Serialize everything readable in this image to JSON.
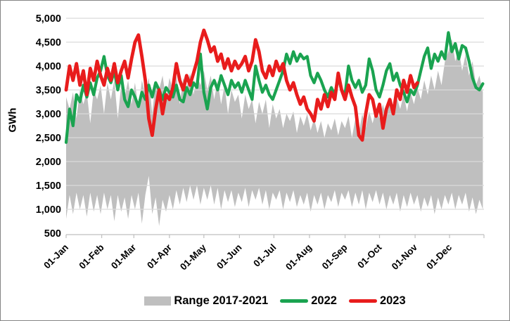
{
  "chart_data": {
    "type": "line",
    "title": "",
    "ylabel": "GWh",
    "ylim": [
      500,
      5000
    ],
    "grid": true,
    "legend_position": "bottom",
    "y_ticks": [
      500,
      1000,
      1500,
      2000,
      2500,
      3000,
      3500,
      4000,
      4500,
      5000
    ],
    "y_tick_labels": [
      "500",
      "1,000",
      "1,500",
      "2,000",
      "2,500",
      "3,000",
      "3,500",
      "4,000",
      "4,500",
      "5,000"
    ],
    "x_tick_labels": [
      "01-Jan",
      "01-Feb",
      "01-Mar",
      "01-Apr",
      "01-May",
      "01-Jun",
      "01-Jul",
      "01-Aug",
      "01-Sep",
      "01-Oct",
      "01-Nov",
      "01-Dec"
    ],
    "x_tick_days": [
      1,
      32,
      60,
      91,
      121,
      152,
      182,
      213,
      244,
      274,
      305,
      335
    ],
    "x_axis_span_days": 365,
    "colors": {
      "range": "#BFBFBF",
      "s2022": "#1AA350",
      "s2023": "#E81C1C",
      "gridline": "#D9D9D9",
      "axis": "#BFBFBF",
      "text": "#000000"
    },
    "range_2017_2021": {
      "name": "Range 2017-2021",
      "color": "#BFBFBF",
      "days": [
        1,
        4,
        7,
        10,
        13,
        16,
        19,
        22,
        25,
        28,
        31,
        34,
        37,
        40,
        43,
        46,
        49,
        52,
        55,
        58,
        61,
        64,
        67,
        70,
        73,
        76,
        79,
        82,
        85,
        88,
        91,
        94,
        97,
        100,
        103,
        106,
        109,
        112,
        115,
        118,
        121,
        124,
        127,
        130,
        133,
        136,
        139,
        142,
        145,
        148,
        151,
        154,
        157,
        160,
        163,
        166,
        169,
        172,
        175,
        178,
        181,
        184,
        187,
        190,
        193,
        196,
        199,
        202,
        205,
        208,
        211,
        214,
        217,
        220,
        223,
        226,
        229,
        232,
        235,
        238,
        241,
        244,
        247,
        250,
        253,
        256,
        259,
        262,
        265,
        268,
        271,
        274,
        277,
        280,
        283,
        286,
        289,
        292,
        295,
        298,
        301,
        304,
        307,
        310,
        313,
        316,
        319,
        322,
        325,
        328,
        331,
        334,
        337,
        340,
        343,
        346,
        349,
        352,
        355,
        358,
        361,
        364
      ],
      "max": [
        3350,
        3100,
        3450,
        2900,
        3500,
        3200,
        3450,
        2800,
        3500,
        3300,
        3600,
        3000,
        3650,
        3300,
        3700,
        2900,
        3600,
        3350,
        3700,
        3200,
        3650,
        3100,
        3700,
        3400,
        3750,
        3000,
        3700,
        3500,
        3800,
        3300,
        3750,
        3500,
        3800,
        3200,
        3750,
        3550,
        3850,
        3400,
        3800,
        3600,
        3900,
        3500,
        3800,
        3300,
        3700,
        3200,
        3600,
        3000,
        3500,
        3250,
        3400,
        2900,
        3400,
        3100,
        3300,
        2800,
        3250,
        3000,
        3300,
        2700,
        3200,
        2900,
        3100,
        2700,
        3000,
        2850,
        3050,
        2600,
        2950,
        2750,
        3000,
        2650,
        2900,
        2600,
        2850,
        2500,
        2800,
        2650,
        2900,
        2550,
        2850,
        2700,
        2950,
        2500,
        2900,
        2600,
        3000,
        2700,
        3050,
        2800,
        3100,
        2900,
        3200,
        2900,
        3300,
        3000,
        3350,
        3100,
        3400,
        3050,
        3450,
        3200,
        3550,
        3300,
        3700,
        3400,
        3800,
        3500,
        3900,
        3600,
        4100,
        4300,
        4560,
        4100,
        4350,
        3900,
        4250,
        3800,
        4100,
        3600,
        3800,
        3450
      ],
      "min": [
        800,
        1300,
        900,
        1350,
        1000,
        1300,
        850,
        1350,
        950,
        1300,
        900,
        1350,
        1000,
        1300,
        750,
        1300,
        950,
        1250,
        800,
        1300,
        1000,
        1350,
        700,
        1300,
        1700,
        900,
        1250,
        650,
        1200,
        950,
        1300,
        1000,
        1400,
        1100,
        1450,
        1150,
        1500,
        1200,
        1500,
        1100,
        1450,
        1200,
        1500,
        1100,
        1450,
        1000,
        1400,
        1150,
        1400,
        1050,
        1350,
        1150,
        1450,
        1050,
        1400,
        1200,
        1450,
        1100,
        1400,
        1000,
        1350,
        1200,
        1400,
        1000,
        1350,
        1150,
        1400,
        1050,
        1300,
        1100,
        1350,
        950,
        1300,
        1100,
        1350,
        1000,
        1300,
        1150,
        1400,
        1050,
        1350,
        1200,
        1400,
        1050,
        1350,
        1100,
        1400,
        1000,
        1350,
        1150,
        1400,
        1100,
        1350,
        1000,
        1300,
        1100,
        1350,
        950,
        1300,
        1050,
        1350,
        1100,
        1300,
        950,
        1250,
        1050,
        1300,
        900,
        1250,
        1000,
        1300,
        1100,
        1350,
        1000,
        1300,
        1100,
        1350,
        950,
        1250,
        900,
        1200,
        1000
      ]
    },
    "series": [
      {
        "name": "2022",
        "color": "#1AA350",
        "days": [
          1,
          4,
          7,
          10,
          13,
          16,
          19,
          22,
          25,
          28,
          31,
          34,
          37,
          40,
          43,
          46,
          49,
          52,
          55,
          58,
          61,
          64,
          67,
          70,
          73,
          76,
          79,
          82,
          85,
          88,
          91,
          94,
          97,
          100,
          103,
          106,
          109,
          112,
          115,
          118,
          121,
          124,
          127,
          130,
          133,
          136,
          139,
          142,
          145,
          148,
          151,
          154,
          157,
          160,
          163,
          166,
          169,
          172,
          175,
          178,
          181,
          184,
          187,
          190,
          193,
          196,
          199,
          202,
          205,
          208,
          211,
          214,
          217,
          220,
          223,
          226,
          229,
          232,
          235,
          238,
          241,
          244,
          247,
          250,
          253,
          256,
          259,
          262,
          265,
          268,
          271,
          274,
          277,
          280,
          283,
          286,
          289,
          292,
          295,
          298,
          301,
          304,
          307,
          310,
          313,
          316,
          319,
          322,
          325,
          328,
          331,
          334,
          337,
          340,
          343,
          346,
          349,
          352,
          355,
          358,
          361,
          364
        ],
        "values": [
          2400,
          3100,
          2750,
          3400,
          3250,
          3600,
          3350,
          3650,
          3400,
          3750,
          3900,
          4200,
          3800,
          3650,
          3900,
          3500,
          3800,
          3300,
          3150,
          3500,
          3350,
          3150,
          3450,
          3300,
          3600,
          3350,
          3650,
          3500,
          3300,
          3550,
          3450,
          3350,
          3600,
          3300,
          3250,
          3550,
          3400,
          3650,
          3550,
          4250,
          3450,
          3100,
          3550,
          3700,
          3500,
          3800,
          3600,
          3400,
          3700,
          3550,
          3650,
          3450,
          3700,
          3500,
          3300,
          4000,
          3700,
          3450,
          3600,
          3400,
          3300,
          3500,
          3700,
          3900,
          4250,
          4050,
          4300,
          4100,
          4250,
          4150,
          4200,
          3800,
          3650,
          3850,
          3700,
          3500,
          3350,
          3550,
          3400,
          3750,
          3500,
          3400,
          4000,
          3700,
          3550,
          3700,
          3450,
          3600,
          4150,
          3900,
          3500,
          3350,
          3600,
          3900,
          4050,
          3700,
          3850,
          3600,
          3450,
          3250,
          3500,
          3400,
          3600,
          3900,
          4200,
          4380,
          3950,
          4250,
          4100,
          4300,
          4150,
          4700,
          4300,
          4470,
          4150,
          4430,
          4380,
          4100,
          3750,
          3550,
          3500,
          3630
        ]
      },
      {
        "name": "2023",
        "color": "#E81C1C",
        "days": [
          1,
          4,
          7,
          10,
          13,
          16,
          19,
          22,
          25,
          28,
          31,
          34,
          37,
          40,
          43,
          46,
          49,
          52,
          55,
          58,
          61,
          64,
          67,
          70,
          73,
          76,
          79,
          82,
          85,
          88,
          91,
          94,
          97,
          100,
          103,
          106,
          109,
          112,
          115,
          118,
          121,
          124,
          127,
          130,
          133,
          136,
          139,
          142,
          145,
          148,
          151,
          154,
          157,
          160,
          163,
          166,
          169,
          172,
          175,
          178,
          181,
          184,
          187,
          190,
          193,
          196,
          199,
          202,
          205,
          208,
          211,
          214,
          217,
          220,
          223,
          226,
          229,
          232,
          235,
          238,
          241,
          244,
          247,
          250,
          253,
          256,
          259,
          262,
          265,
          268,
          271,
          274,
          277,
          280,
          283,
          286,
          289,
          292,
          295,
          298,
          301,
          304,
          307
        ],
        "values": [
          3500,
          4000,
          3700,
          4050,
          3600,
          3900,
          3400,
          3950,
          3700,
          4100,
          3800,
          3600,
          3950,
          3700,
          4050,
          3650,
          3900,
          4100,
          3750,
          4150,
          4500,
          4650,
          4200,
          3700,
          2900,
          2550,
          3100,
          3500,
          3000,
          3400,
          3300,
          3550,
          4050,
          3700,
          3500,
          3800,
          3600,
          3850,
          4100,
          4500,
          4750,
          4550,
          4300,
          4400,
          4100,
          4250,
          3950,
          4150,
          3900,
          4100,
          3950,
          4050,
          4200,
          3900,
          4100,
          4550,
          4300,
          3900,
          3750,
          4000,
          3800,
          4100,
          3900,
          4050,
          3700,
          3500,
          3650,
          3400,
          3200,
          3350,
          3100,
          3000,
          2850,
          3300,
          3100,
          3400,
          3150,
          3450,
          3300,
          3850,
          3500,
          3300,
          3600,
          3350,
          3150,
          2550,
          2450,
          3000,
          3400,
          3300,
          2950,
          3200,
          2700,
          3100,
          3300,
          3000,
          3500,
          3300,
          3700,
          3450,
          3800,
          3550,
          3650
        ]
      }
    ],
    "legend": {
      "items": [
        {
          "label": "Range 2017-2021",
          "swatch": "rect",
          "color": "#BFBFBF"
        },
        {
          "label": "2022",
          "swatch": "line",
          "color": "#1AA350"
        },
        {
          "label": "2023",
          "swatch": "line",
          "color": "#E81C1C"
        }
      ]
    }
  }
}
